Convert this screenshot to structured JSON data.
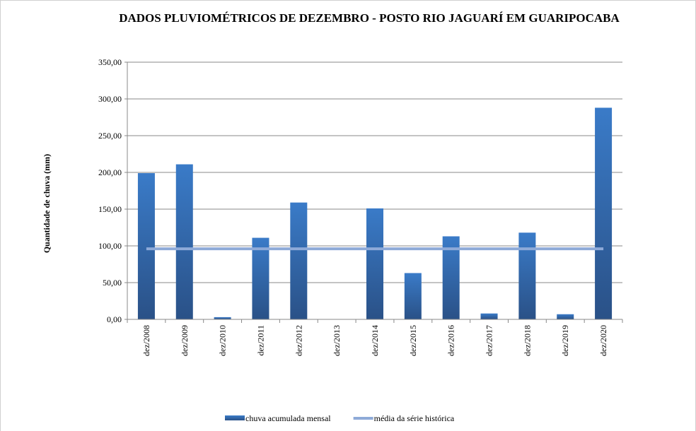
{
  "chart_data": {
    "type": "bar",
    "title": "DADOS PLUVIOMÉTRICOS DE DEZEMBRO - POSTO RIO JAGUARÍ EM GUARIPOCABA",
    "y_label": "Quantidade de chuva (mm)",
    "categories": [
      "dez/2008",
      "dez/2009",
      "dez/2010",
      "dez/2011",
      "dez/2012",
      "dez/2013",
      "dez/2014",
      "dez/2015",
      "dez/2016",
      "dez/2017",
      "dez/2018",
      "dez/2019",
      "dez/2020"
    ],
    "series": [
      {
        "name": "chuva acumulada mensal",
        "type": "bar",
        "color": "#3570b8",
        "values": [
          199,
          211,
          3,
          111,
          159,
          0,
          151,
          63,
          113,
          8,
          118,
          7,
          288
        ]
      },
      {
        "name": "média da série histórica",
        "type": "line",
        "color": "#8eaad8",
        "values": [
          96,
          96,
          96,
          96,
          96,
          96,
          96,
          96,
          96,
          96,
          96,
          96,
          96
        ]
      }
    ],
    "ylim": [
      0,
      350
    ],
    "yticks": [
      {
        "value": 0,
        "label": "0,00"
      },
      {
        "value": 50,
        "label": "50,00"
      },
      {
        "value": 100,
        "label": "100,00"
      },
      {
        "value": 150,
        "label": "150,00"
      },
      {
        "value": 200,
        "label": "200,00"
      },
      {
        "value": 250,
        "label": "250,00"
      },
      {
        "value": 300,
        "label": "300,00"
      },
      {
        "value": 350,
        "label": "350,00"
      }
    ],
    "grid": true,
    "legend": "bottom"
  }
}
